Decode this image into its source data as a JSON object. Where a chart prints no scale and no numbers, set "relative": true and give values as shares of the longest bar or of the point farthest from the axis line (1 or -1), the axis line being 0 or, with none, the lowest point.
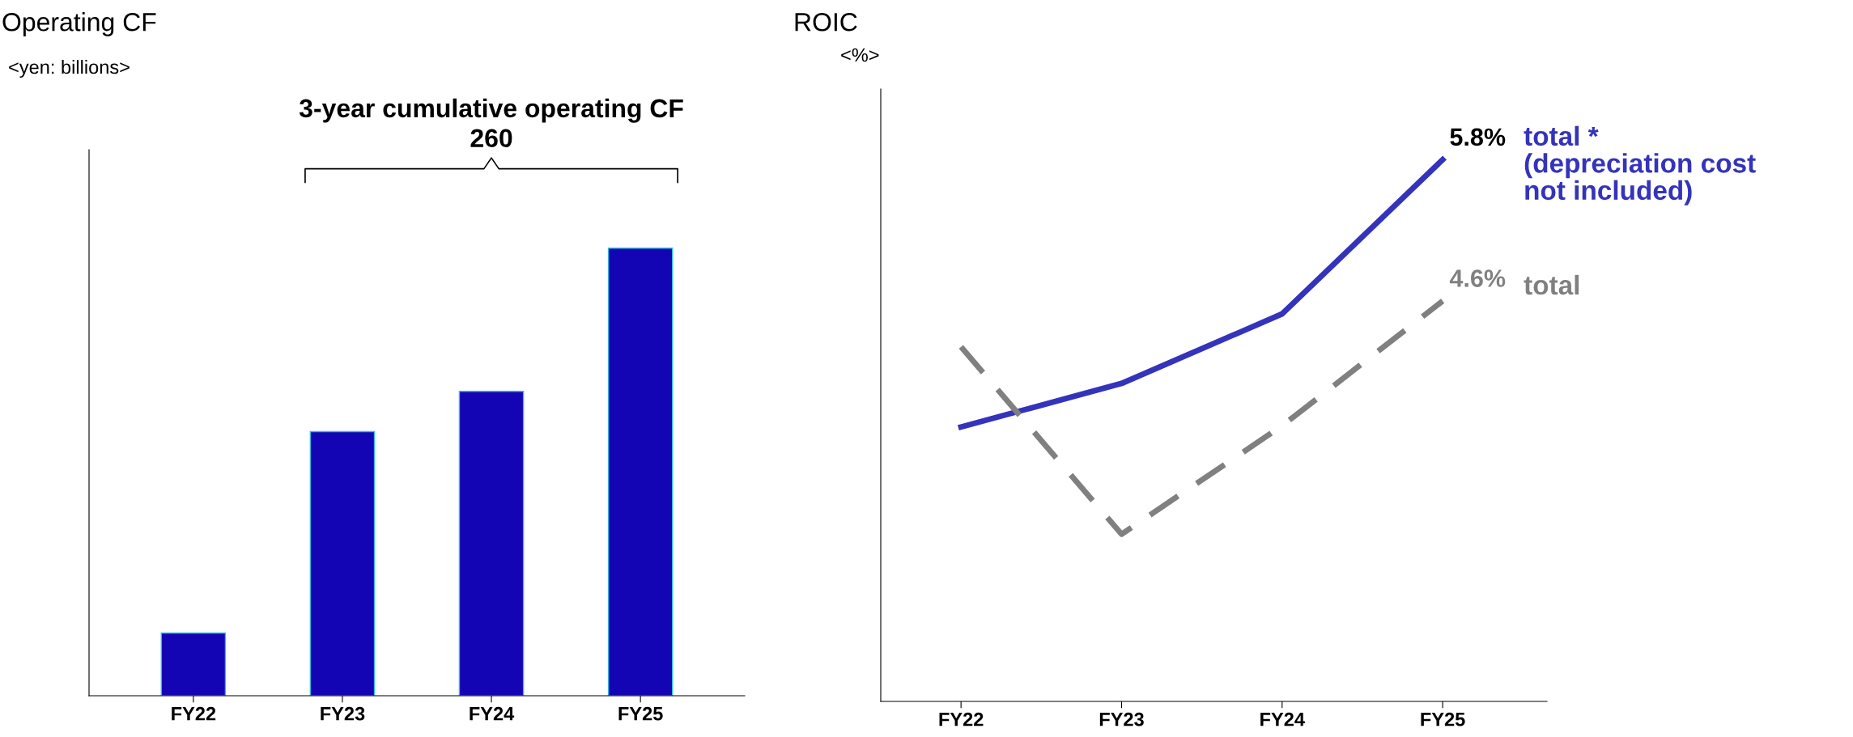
{
  "chart_data": [
    {
      "type": "bar",
      "title": "Operating CF",
      "subtitle": "<yen: billions>",
      "categories": [
        "FY22",
        "FY23",
        "FY24",
        "FY25"
      ],
      "relative": true,
      "series": [
        {
          "color": "#1405b4",
          "values": [
            0.14,
            0.59,
            0.68,
            1.0
          ]
        }
      ],
      "annotations": [
        "3-year cumulative operating CF\n260"
      ],
      "grid": false,
      "legend": false
    },
    {
      "type": "line",
      "title": "ROIC",
      "subtitle": "<%>",
      "categories": [
        "FY22",
        "FY23",
        "FY24",
        "FY25"
      ],
      "ylim": [
        1.2,
        6.4
      ],
      "series": [
        {
          "name": "total *\n(depreciation cost\nnot included)",
          "color": "#3333bb",
          "line_style": "solid",
          "values": [
            3.53,
            3.9,
            4.49,
            5.8
          ],
          "value_labels": [
            null,
            null,
            null,
            "5.8%"
          ]
        },
        {
          "name": "total",
          "color": "#808080",
          "line_style": "dashed",
          "values": [
            4.21,
            2.62,
            3.54,
            4.6
          ],
          "value_labels": [
            null,
            null,
            null,
            "4.6%"
          ]
        }
      ],
      "grid": false,
      "legend": false,
      "marker": "none"
    }
  ]
}
